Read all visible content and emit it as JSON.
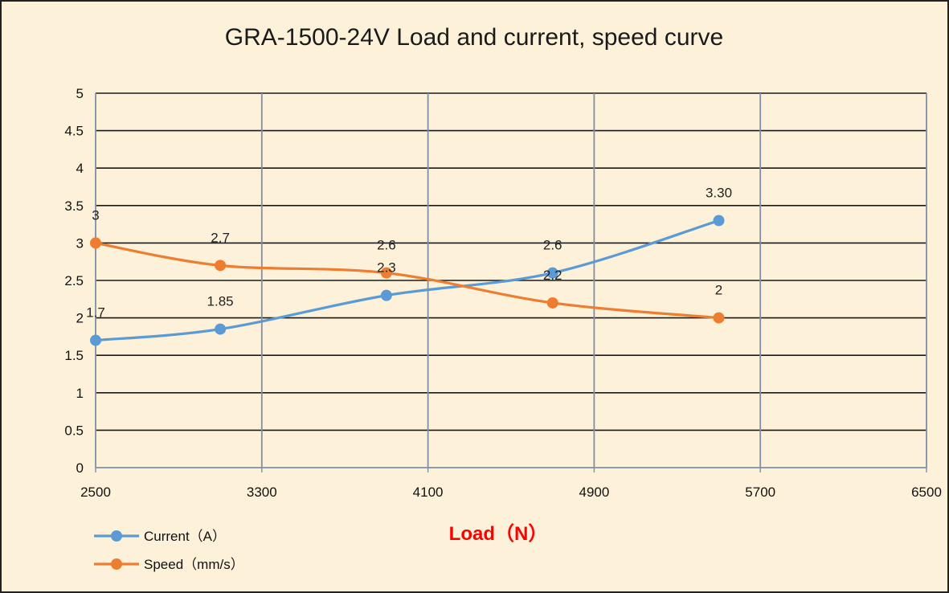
{
  "chart_data": {
    "type": "line",
    "title": "GRA-1500-24V Load and current, speed curve",
    "xlabel": "Load（N）",
    "ylabel": "",
    "xlim": [
      2500,
      6500
    ],
    "ylim": [
      0,
      5
    ],
    "x_ticks": [
      "2500",
      "3300",
      "4100",
      "4900",
      "5700",
      "6500"
    ],
    "y_ticks": [
      "0",
      "0.5",
      "1",
      "1.5",
      "2",
      "2.5",
      "3",
      "3.5",
      "4",
      "4.5",
      "5"
    ],
    "grid": true,
    "legend_position": "bottom-left",
    "series": [
      {
        "name": "Current（A）",
        "color": "#5b9bd5",
        "x": [
          2500,
          3100,
          3900,
          4700,
          5500
        ],
        "y": [
          1.7,
          1.85,
          2.3,
          2.6,
          3.3
        ],
        "labels": [
          "1.7",
          "1.85",
          "2.3",
          "2.6",
          "3.30"
        ]
      },
      {
        "name": "Speed（mm/s）",
        "color": "#ed7d31",
        "x": [
          2500,
          3100,
          3900,
          4700,
          5500
        ],
        "y": [
          3,
          2.7,
          2.6,
          2.2,
          2
        ],
        "labels": [
          "3",
          "2.7",
          "2.6",
          "2.2",
          "2"
        ]
      }
    ]
  }
}
